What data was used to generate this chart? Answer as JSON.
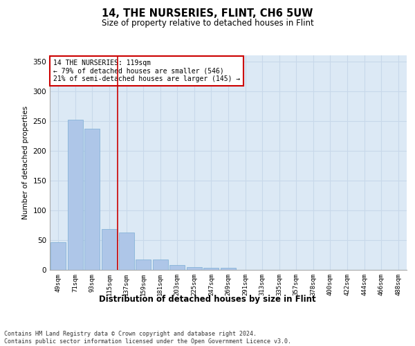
{
  "title": "14, THE NURSERIES, FLINT, CH6 5UW",
  "subtitle": "Size of property relative to detached houses in Flint",
  "xlabel": "Distribution of detached houses by size in Flint",
  "ylabel": "Number of detached properties",
  "footnote": "Contains HM Land Registry data © Crown copyright and database right 2024.\nContains public sector information licensed under the Open Government Licence v3.0.",
  "categories": [
    "49sqm",
    "71sqm",
    "93sqm",
    "115sqm",
    "137sqm",
    "159sqm",
    "181sqm",
    "203sqm",
    "225sqm",
    "247sqm",
    "269sqm",
    "291sqm",
    "313sqm",
    "335sqm",
    "357sqm",
    "378sqm",
    "400sqm",
    "422sqm",
    "444sqm",
    "466sqm",
    "488sqm"
  ],
  "values": [
    46,
    252,
    237,
    68,
    63,
    18,
    17,
    8,
    5,
    4,
    3,
    0,
    0,
    0,
    0,
    0,
    0,
    0,
    0,
    0,
    0
  ],
  "bar_color": "#aec6e8",
  "bar_edge_color": "#7aacd4",
  "grid_color": "#c8d8ea",
  "background_color": "#dce9f5",
  "red_line_x": 3.5,
  "annotation_line1": "14 THE NURSERIES: 119sqm",
  "annotation_line2": "← 79% of detached houses are smaller (546)",
  "annotation_line3": "21% of semi-detached houses are larger (145) →",
  "annotation_box_color": "#ffffff",
  "annotation_box_edge": "#cc0000",
  "red_line_color": "#cc0000",
  "ylim": [
    0,
    360
  ],
  "yticks": [
    0,
    50,
    100,
    150,
    200,
    250,
    300,
    350
  ]
}
